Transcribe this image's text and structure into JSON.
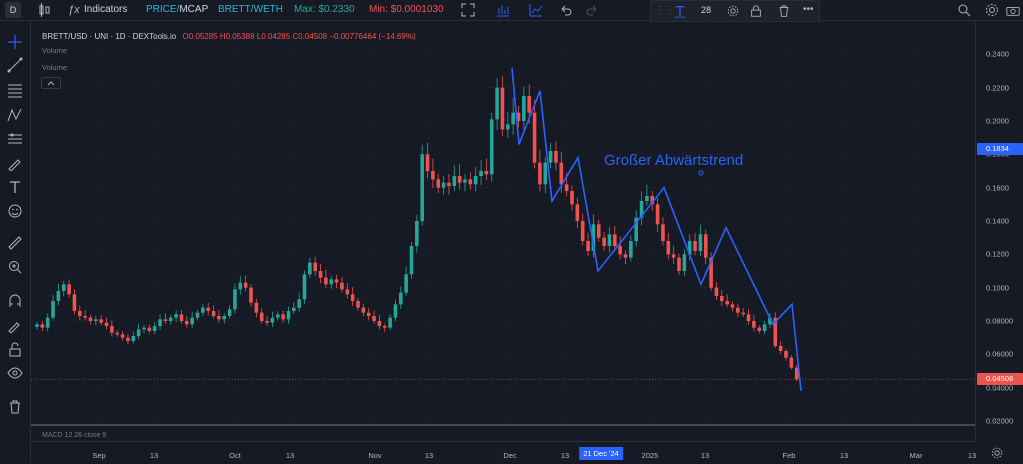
{
  "toolbar": {
    "symbol_short": "D",
    "indicators_label": "Indicators",
    "price_mcap": "PRICE/MCAP",
    "price_label": "PRICE",
    "slash": "/",
    "mcap_label": "MCAP",
    "pair_label": "BRETT/WETH",
    "max_label": "Max: $0.2330",
    "min_label": "Min: $0.0001030",
    "font_size": "28"
  },
  "legend": {
    "title": "BRETT/USD · UNI · 1D · DEXTools.io",
    "open": "O0.05285",
    "high": "H0.05388",
    "low": "L0.04285",
    "close": "C0.04508",
    "change": "−0.00776464 (−14.69%)",
    "volume1": "Volume",
    "volume2": "Volume"
  },
  "annotation": "Großer Abwärtstrend",
  "macd_label": "MACD 12 26 close 9",
  "chart_data": {
    "type": "candlestick",
    "title": "BRETT/USD · UNI · 1D · DEXTools.io",
    "ylim": [
      0.02,
      0.24
    ],
    "yticks": [
      "0.02000",
      "0.04000",
      "0.06000",
      "0.08000",
      "0.1000",
      "0.1200",
      "0.1400",
      "0.1600",
      "0.1800",
      "0.2000",
      "0.2200",
      "0.2400"
    ],
    "xticks": [
      "Sep",
      "13",
      "Oct",
      "13",
      "Nov",
      "13",
      "Dec",
      "13",
      "2025",
      "13",
      "Feb",
      "13",
      "Mar",
      "13"
    ],
    "crosshair_date": "21 Dec '24",
    "current_price": "0.04508",
    "crosshair_price": "0.1834",
    "close_series": [
      0.078,
      0.076,
      0.082,
      0.092,
      0.098,
      0.102,
      0.096,
      0.086,
      0.083,
      0.082,
      0.08,
      0.081,
      0.079,
      0.077,
      0.073,
      0.072,
      0.07,
      0.068,
      0.071,
      0.075,
      0.076,
      0.074,
      0.077,
      0.081,
      0.08,
      0.082,
      0.084,
      0.08,
      0.078,
      0.082,
      0.085,
      0.088,
      0.086,
      0.083,
      0.081,
      0.083,
      0.087,
      0.099,
      0.103,
      0.1,
      0.091,
      0.085,
      0.08,
      0.079,
      0.082,
      0.084,
      0.081,
      0.086,
      0.088,
      0.093,
      0.108,
      0.115,
      0.11,
      0.106,
      0.102,
      0.105,
      0.103,
      0.099,
      0.096,
      0.092,
      0.088,
      0.085,
      0.083,
      0.08,
      0.077,
      0.076,
      0.082,
      0.09,
      0.097,
      0.108,
      0.125,
      0.14,
      0.18,
      0.17,
      0.165,
      0.16,
      0.163,
      0.161,
      0.167,
      0.163,
      0.165,
      0.162,
      0.167,
      0.17,
      0.168,
      0.201,
      0.22,
      0.195,
      0.198,
      0.205,
      0.2,
      0.215,
      0.205,
      0.175,
      0.162,
      0.175,
      0.182,
      0.175,
      0.162,
      0.158,
      0.15,
      0.14,
      0.128,
      0.122,
      0.138,
      0.13,
      0.125,
      0.132,
      0.125,
      0.12,
      0.118,
      0.128,
      0.142,
      0.152,
      0.155,
      0.15,
      0.138,
      0.128,
      0.12,
      0.118,
      0.11,
      0.12,
      0.128,
      0.122,
      0.132,
      0.118,
      0.1,
      0.095,
      0.092,
      0.09,
      0.088,
      0.085,
      0.084,
      0.08,
      0.076,
      0.074,
      0.078,
      0.082,
      0.065,
      0.062,
      0.058,
      0.052,
      0.045
    ],
    "trend_lines": [
      {
        "name": "zigzag",
        "points": [
          [
            "Dec 1",
            0.232
          ],
          [
            "Dec 3",
            0.186
          ],
          [
            "Dec 8",
            0.218
          ],
          [
            "Dec 12",
            0.152
          ],
          [
            "Dec 17",
            0.178
          ],
          [
            "Dec 26",
            0.11
          ],
          [
            "Jan 6",
            0.16
          ],
          [
            "Jan 14",
            0.102
          ],
          [
            "Jan 19",
            0.136
          ],
          [
            "Jan 28",
            0.078
          ],
          [
            "Feb 1",
            0.09
          ],
          [
            "Feb 3",
            0.038
          ]
        ]
      }
    ]
  },
  "colors": {
    "up": "#26a69a",
    "down": "#ef5350",
    "trend": "#2962ff",
    "background": "#161a25"
  }
}
